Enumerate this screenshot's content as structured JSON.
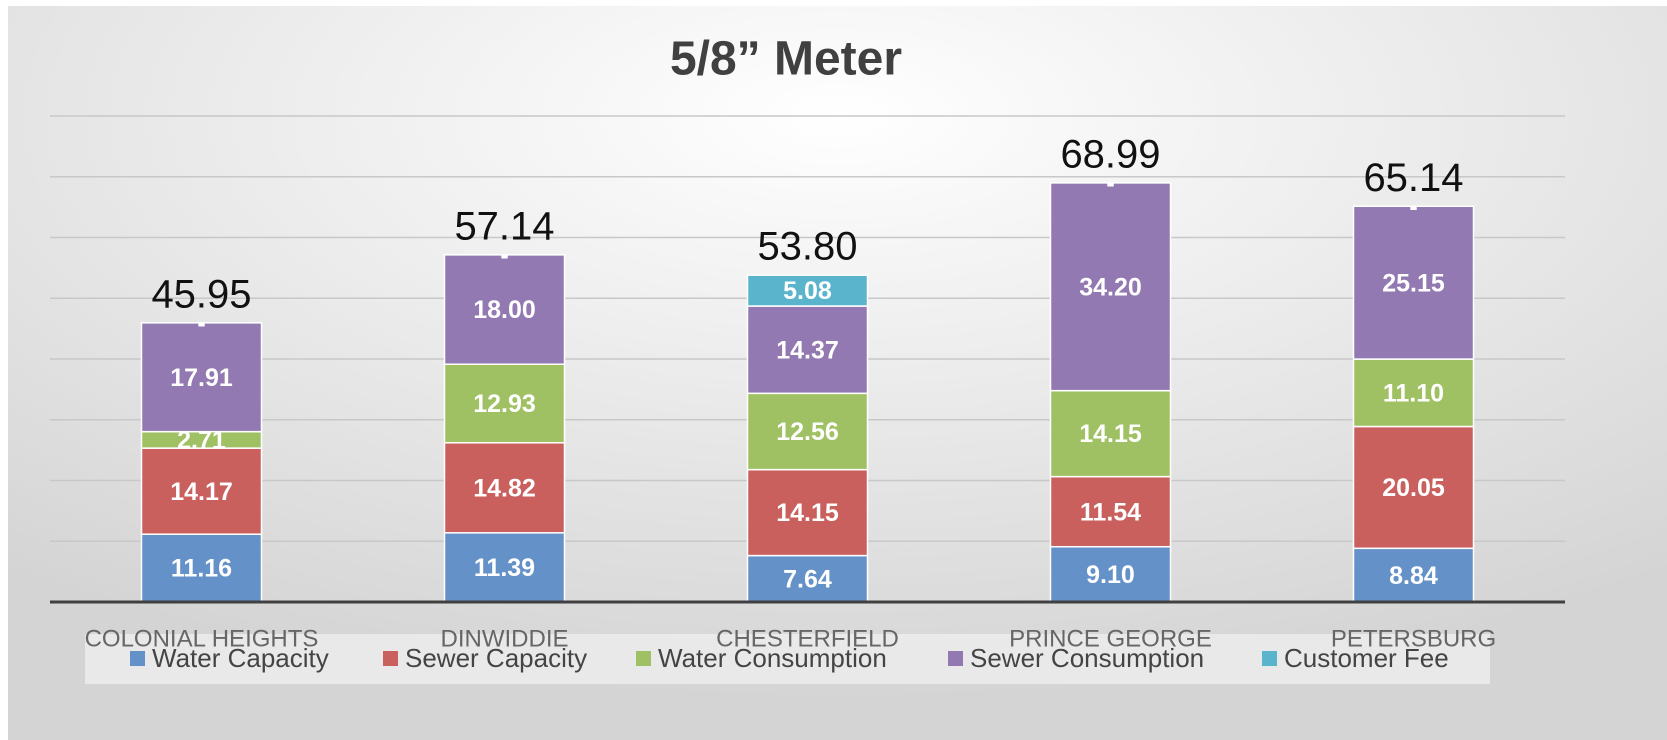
{
  "chart_data": {
    "type": "stacked-bar",
    "title": "5/8” Meter",
    "categories": [
      "COLONIAL HEIGHTS",
      "DINWIDDIE",
      "CHESTERFIELD",
      "PRINCE GEORGE",
      "PETERSBURG"
    ],
    "series": [
      {
        "name": "Water Capacity",
        "color": "#6591c9",
        "values": [
          11.16,
          11.39,
          7.64,
          9.1,
          8.84
        ],
        "value_labels": [
          "11.16",
          "11.39",
          "7.64",
          "9.10",
          "8.84"
        ]
      },
      {
        "name": "Sewer Capacity",
        "color": "#c9605e",
        "values": [
          14.17,
          14.82,
          14.15,
          11.54,
          20.05
        ],
        "value_labels": [
          "14.17",
          "14.82",
          "14.15",
          "11.54",
          "20.05"
        ]
      },
      {
        "name": "Water Consumption",
        "color": "#9fc163",
        "values": [
          2.71,
          12.93,
          12.56,
          14.15,
          11.1
        ],
        "value_labels": [
          "2.71",
          "12.93",
          "12.56",
          "14.15",
          "11.10"
        ]
      },
      {
        "name": "Sewer Consumption",
        "color": "#9279b1",
        "values": [
          17.91,
          18.0,
          14.37,
          34.2,
          25.15
        ],
        "value_labels": [
          "17.91",
          "18.00",
          "14.37",
          "34.20",
          "25.15"
        ]
      },
      {
        "name": "Customer Fee",
        "color": "#5ab4cc",
        "values": [
          0,
          0,
          5.08,
          0,
          0
        ],
        "value_labels": [
          "-",
          "-",
          "5.08",
          "-",
          "-"
        ]
      }
    ],
    "totals": [
      45.95,
      57.14,
      53.8,
      68.99,
      65.14
    ],
    "total_labels": [
      "45.95",
      "57.14",
      "53.80",
      "68.99",
      "65.14"
    ],
    "ylim": [
      0,
      80
    ],
    "yticks": [
      0,
      10,
      20,
      30,
      40,
      50,
      60,
      70,
      80
    ],
    "grid": true,
    "legend": "bottom"
  }
}
